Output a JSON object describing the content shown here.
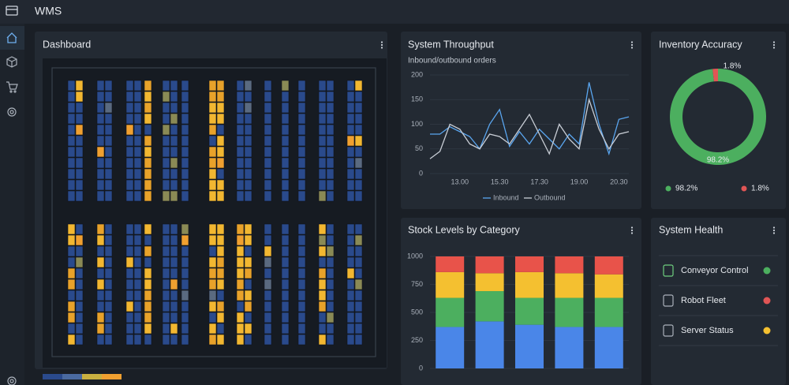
{
  "header": {
    "title": "WMS"
  },
  "dashboard": {
    "title": "Dashboard"
  },
  "chart_data": [
    {
      "type": "line",
      "title": "System Throughput",
      "subtitle": "Inbound/outbound orders",
      "categories": [
        null,
        null,
        null,
        "13.00",
        null,
        null,
        null,
        "15.30",
        null,
        null,
        null,
        "17.30",
        null,
        null,
        null,
        "19.00",
        null,
        null,
        null,
        "20.30",
        null
      ],
      "series": [
        {
          "name": "Inbound",
          "color": "#5aa6f0",
          "values": [
            80,
            80,
            95,
            85,
            75,
            50,
            100,
            130,
            55,
            85,
            60,
            90,
            70,
            50,
            80,
            60,
            185,
            100,
            40,
            110,
            115
          ]
        },
        {
          "name": "Outbound",
          "color": "#c9ced6",
          "values": [
            30,
            45,
            100,
            90,
            60,
            50,
            80,
            75,
            60,
            90,
            120,
            80,
            40,
            100,
            70,
            50,
            150,
            90,
            50,
            80,
            85
          ]
        }
      ],
      "ylim": [
        0,
        200
      ],
      "yticks": [
        0,
        50,
        100,
        150,
        200
      ],
      "grid": true
    },
    {
      "type": "pie",
      "title": "Inventory Accuracy",
      "values": [
        98.2,
        1.8
      ],
      "value_labels": [
        "98.2%",
        "1.8%"
      ],
      "colors": [
        "#4caf5f",
        "#e05555"
      ],
      "donut": true
    },
    {
      "type": "bar",
      "title": "Stock Levels by Category",
      "stacked": true,
      "categories": [
        null,
        null,
        null,
        null,
        null
      ],
      "series": [
        {
          "color": "#4a86e8",
          "values": [
            370,
            420,
            390,
            370,
            370
          ]
        },
        {
          "color": "#4caf5f",
          "values": [
            260,
            270,
            240,
            260,
            260
          ]
        },
        {
          "color": "#f4c030",
          "values": [
            230,
            160,
            230,
            220,
            210
          ]
        },
        {
          "color": "#e8534a",
          "values": [
            140,
            150,
            140,
            150,
            160
          ]
        }
      ],
      "ylim": [
        0,
        1000
      ],
      "yticks": [
        0,
        250,
        500,
        750,
        1000
      ],
      "grid": true
    }
  ],
  "health": {
    "title": "System Health",
    "items": [
      {
        "label": "Conveyor Control",
        "status_color": "#4caf5f"
      },
      {
        "label": "Robot Fleet",
        "status_color": "#e05555"
      },
      {
        "label": "Server Status",
        "status_color": "#f4c030"
      }
    ]
  }
}
